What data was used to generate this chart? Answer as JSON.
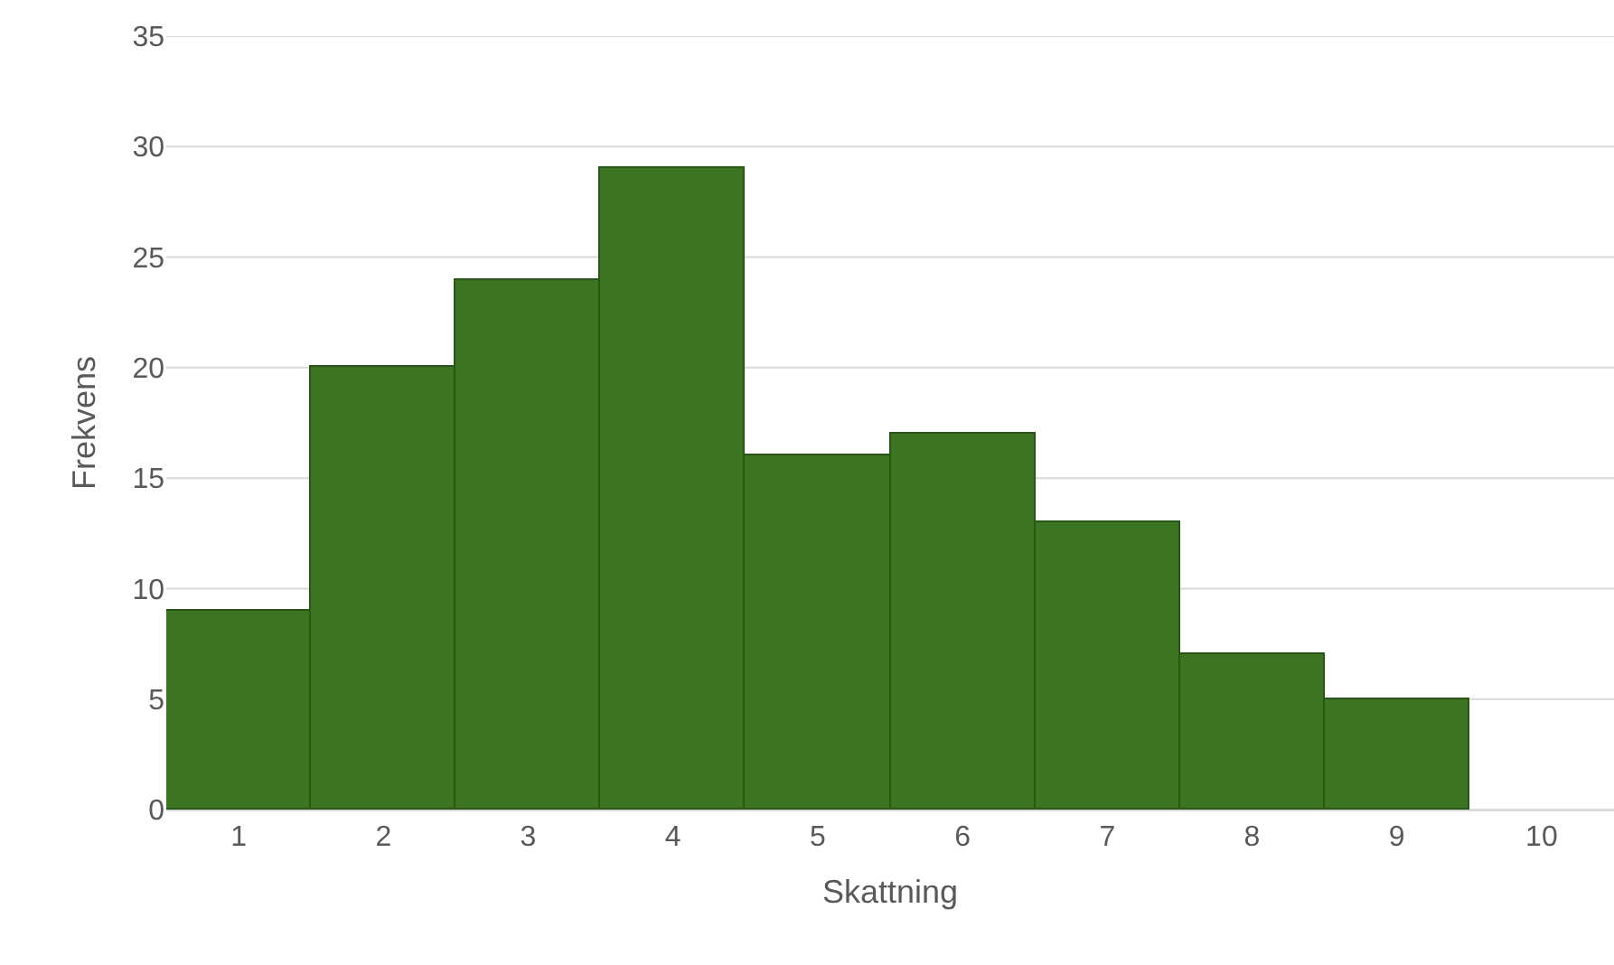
{
  "chart_data": {
    "type": "bar",
    "xlabel": "Skattning",
    "ylabel": "Frekvens",
    "categories": [
      "1",
      "2",
      "3",
      "4",
      "5",
      "6",
      "7",
      "8",
      "9",
      "10"
    ],
    "values": [
      9,
      20,
      24,
      29,
      16,
      17,
      13,
      7,
      5,
      null
    ],
    "color": "#3b7522",
    "ylim": [
      0,
      35
    ],
    "yticks": [
      0,
      5,
      10,
      15,
      20,
      25,
      30,
      35
    ],
    "grid": "y"
  }
}
